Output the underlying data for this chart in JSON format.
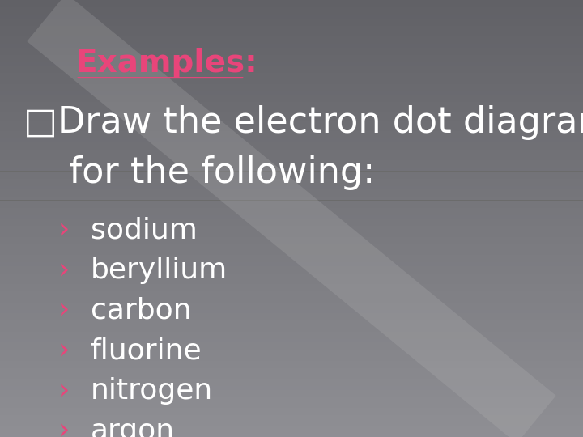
{
  "background_color_top": "#6b6b6b",
  "background_color_bottom": "#8a8a8a",
  "title": "Examples:",
  "title_color": "#e8457a",
  "title_fontsize": 28,
  "bullet_main_line1": "□Draw the electron dot diagrams",
  "bullet_main_line2": "    for the following:",
  "bullet_main_color": "#ffffff",
  "bullet_main_fontsize": 32,
  "sub_bullets": [
    "›",
    "›",
    "›",
    "›",
    "›",
    "›"
  ],
  "sub_texts": [
    "sodium",
    "beryllium",
    "carbon",
    "fluorine",
    "nitrogen",
    "argon"
  ],
  "sub_item_color": "#ffffff",
  "sub_item_bullet_color": "#e8457a",
  "sub_item_fontsize": 26,
  "diagonal_line_color": "#bbbbbb",
  "diagonal_line_alpha": 0.22
}
